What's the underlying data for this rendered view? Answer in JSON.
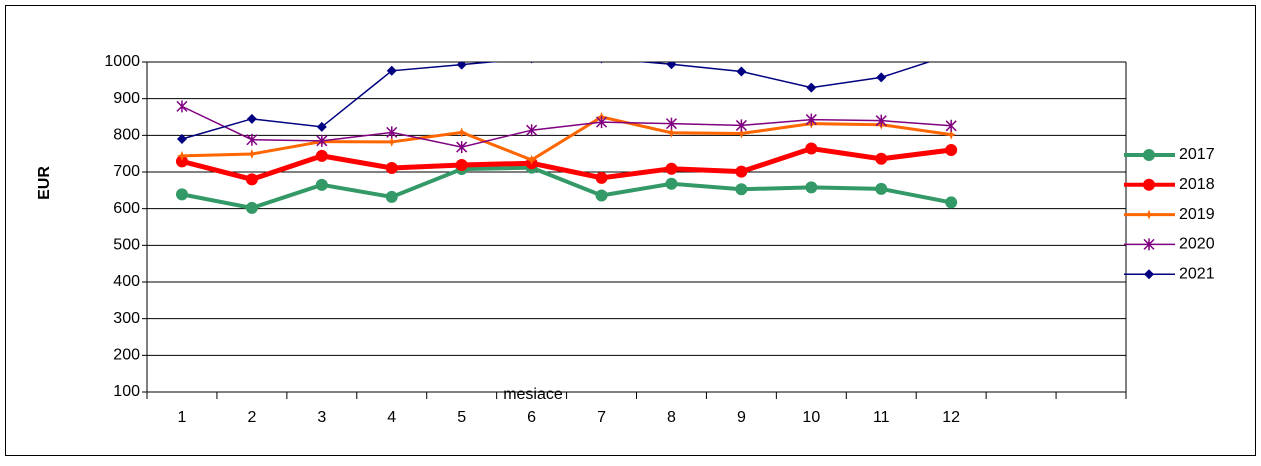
{
  "chart_data": {
    "type": "line",
    "x_label": "mesiace",
    "y_label": "EUR",
    "categories": [
      "1",
      "2",
      "3",
      "4",
      "5",
      "6",
      "7",
      "8",
      "9",
      "10",
      "11",
      "12",
      null,
      null
    ],
    "series": [
      {
        "name": "2017",
        "color": "#339966",
        "marker": "circle",
        "width": 4,
        "values": [
          639,
          602,
          665,
          632,
          708,
          712,
          636,
          668,
          653,
          658,
          654,
          617,
          null,
          null
        ]
      },
      {
        "name": "2018",
        "color": "#ff0000",
        "marker": "circle",
        "width": 5,
        "values": [
          729,
          680,
          744,
          711,
          719,
          724,
          684,
          709,
          701,
          764,
          736,
          760,
          null,
          null
        ]
      },
      {
        "name": "2019",
        "color": "#ff6600",
        "marker": "star",
        "width": 3,
        "values": [
          744,
          749,
          783,
          782,
          808,
          733,
          850,
          807,
          805,
          832,
          829,
          802,
          null,
          null
        ]
      },
      {
        "name": "2020",
        "color": "#800080",
        "marker": "asterisk",
        "width": 1.5,
        "values": [
          879,
          788,
          785,
          808,
          768,
          814,
          836,
          832,
          827,
          843,
          840,
          826,
          null,
          null
        ]
      },
      {
        "name": "2021",
        "color": "#000080",
        "marker": "diamond",
        "width": 1.5,
        "values": [
          790,
          845,
          823,
          976,
          993,
          1010,
          1010,
          994,
          974,
          930,
          958,
          1020,
          null,
          null
        ]
      }
    ],
    "ylim": [
      100,
      1000
    ],
    "yticks": [
      100,
      200,
      300,
      400,
      500,
      600,
      700,
      800,
      900,
      1000
    ],
    "grid": true,
    "legend": "right"
  }
}
